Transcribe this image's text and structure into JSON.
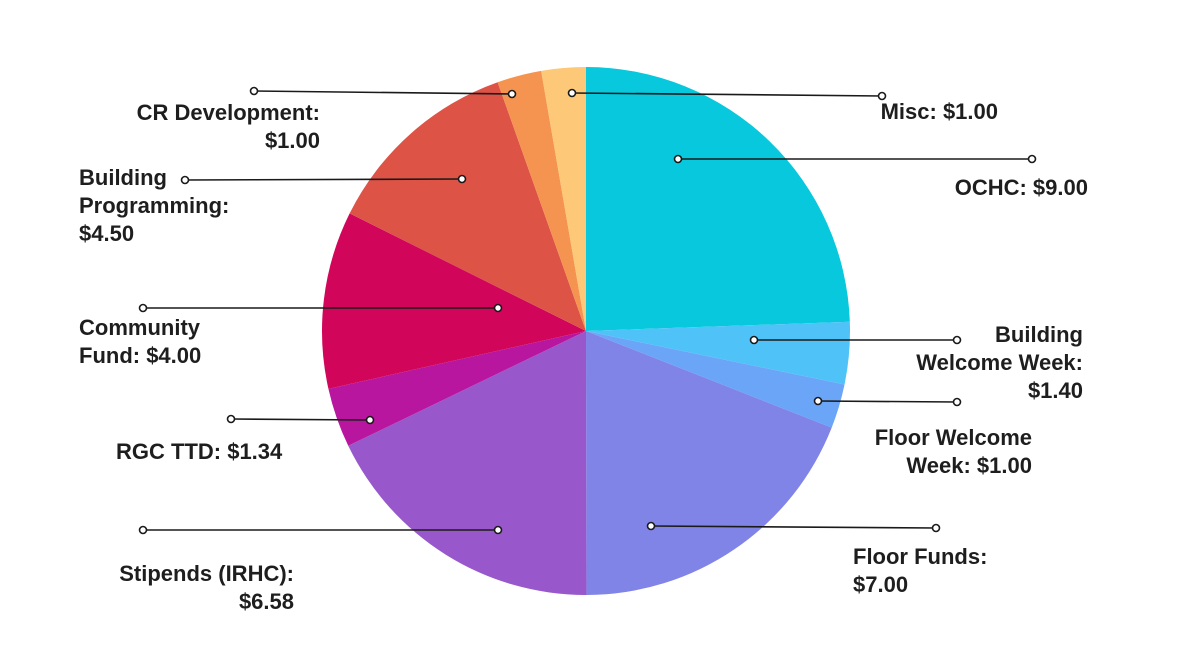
{
  "chart_data": {
    "type": "pie",
    "title": "",
    "start": "12 o'clock",
    "direction": "clockwise",
    "legend": "none (callout labels)",
    "colors_note": "slice colors listed per slice",
    "slices": [
      {
        "label": "OCHC",
        "value": 9.0,
        "value_text": "$9.00",
        "color": "#07c8dc",
        "text": [
          "OCHC: $9.00"
        ]
      },
      {
        "label": "Building Welcome Week",
        "value": 1.4,
        "value_text": "$1.40",
        "color": "#4fc3f7",
        "text": [
          "Building",
          "Welcome Week:",
          "$1.40"
        ]
      },
      {
        "label": "Floor Welcome Week",
        "value": 1.0,
        "value_text": "$1.00",
        "color": "#6aa5f8",
        "text": [
          "Floor Welcome",
          "Week: $1.00"
        ]
      },
      {
        "label": "Floor Funds",
        "value": 7.0,
        "value_text": "$7.00",
        "color": "#7f84e6",
        "text": [
          "Floor Funds:",
          "$7.00"
        ]
      },
      {
        "label": "Stipends (IRHC)",
        "value": 6.58,
        "value_text": "$6.58",
        "color": "#9858cc",
        "text": [
          "Stipends (IRHC):",
          "$6.58"
        ]
      },
      {
        "label": "RGC TTD",
        "value": 1.34,
        "value_text": "$1.34",
        "color": "#b8169f",
        "text": [
          "RGC TTD: $1.34"
        ]
      },
      {
        "label": "Community Fund",
        "value": 4.0,
        "value_text": "$4.00",
        "color": "#d1065a",
        "text": [
          "Community",
          "Fund: $4.00"
        ]
      },
      {
        "label": "Building Programming",
        "value": 4.5,
        "value_text": "$4.50",
        "color": "#dd5346",
        "text": [
          "Building",
          "Programming:",
          "$4.50"
        ]
      },
      {
        "label": "CR Development",
        "value": 1.0,
        "value_text": "$1.00",
        "color": "#f59450",
        "text": [
          "CR Development:",
          "$1.00"
        ]
      },
      {
        "label": "Misc",
        "value": 1.0,
        "value_text": "$1.00",
        "color": "#fdc877",
        "text": [
          "Misc: $1.00"
        ]
      }
    ]
  }
}
